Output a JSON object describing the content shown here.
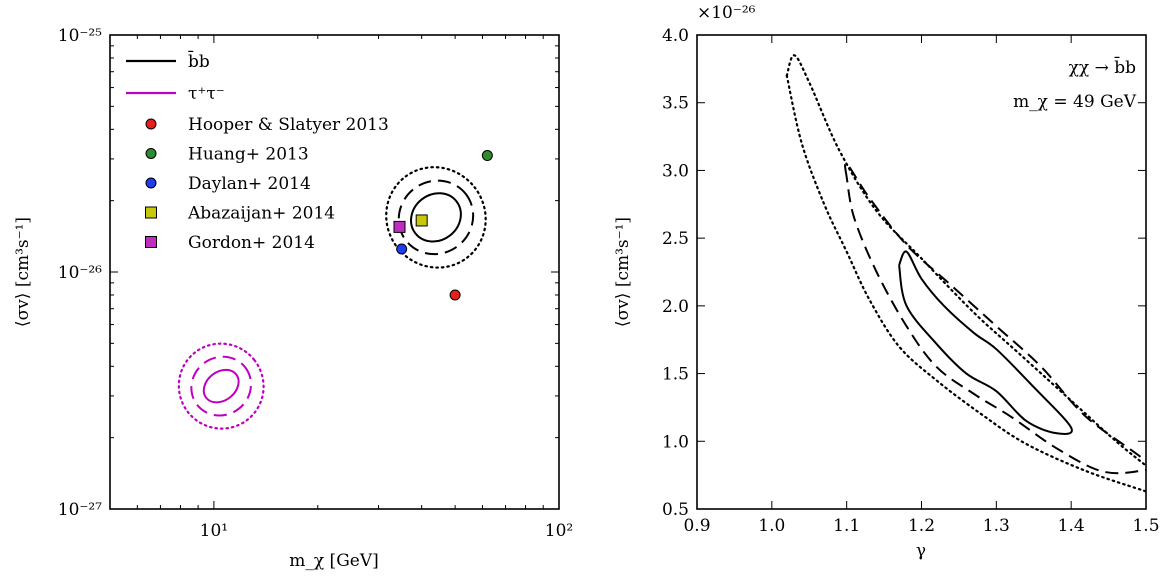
{
  "chart_data": [
    {
      "type": "scatter",
      "xlabel": "m_χ [GeV]",
      "ylabel": "⟨σv⟩ [cm³s⁻¹]",
      "xscale": "log",
      "yscale": "log",
      "xlim": [
        5,
        100
      ],
      "ylim": [
        1e-27,
        1e-25
      ],
      "x_ticks": [
        {
          "value": 10,
          "label": "10¹"
        },
        {
          "value": 100,
          "label": "10²"
        }
      ],
      "y_ticks": [
        {
          "value": 1e-27,
          "label": "10⁻²⁷"
        },
        {
          "value": 1e-26,
          "label": "10⁻²⁶"
        },
        {
          "value": 1e-25,
          "label": "10⁻²⁵"
        }
      ],
      "legend_placement": "top-left",
      "contour_series": [
        {
          "name": "b̄b",
          "color": "#000000",
          "center": [
            44,
            1.7e-26
          ],
          "contours": [
            {
              "style": "solid",
              "x_range": [
                36,
                55
              ],
              "y_range": [
                1.3e-26,
                2.3e-26
              ]
            },
            {
              "style": "dashed",
              "x_range": [
                34,
                63
              ],
              "y_range": [
                1.1e-26,
                2.7e-26
              ]
            },
            {
              "style": "dotted",
              "x_range": [
                32,
                71
              ],
              "y_range": [
                9e-27,
                3.2e-26
              ]
            }
          ]
        },
        {
          "name": "τ⁺τ⁻",
          "color": "#c000c0",
          "center": [
            10.5,
            3.3e-27
          ],
          "contours": [
            {
              "style": "solid",
              "x_range": [
                9.1,
                12.4
              ],
              "y_range": [
                2.8e-27,
                4e-27
              ]
            },
            {
              "style": "dashed",
              "x_range": [
                8.4,
                13.8
              ],
              "y_range": [
                2.3e-27,
                4.7e-27
              ]
            },
            {
              "style": "dotted",
              "x_range": [
                7.7,
                15.3
              ],
              "y_range": [
                1.9e-27,
                5.5e-27
              ]
            }
          ]
        }
      ],
      "points": [
        {
          "name": "Hooper & Slatyer 2013",
          "marker": "circle",
          "color": "#e8201b",
          "x": 50,
          "y": 8e-27
        },
        {
          "name": "Huang+ 2013",
          "marker": "circle",
          "color": "#2e8b2e",
          "x": 62,
          "y": 3.1e-26
        },
        {
          "name": "Daylan+ 2014",
          "marker": "circle",
          "color": "#1e3cf0",
          "x": 35,
          "y": 1.25e-26
        },
        {
          "name": "Abazaijan+ 2014",
          "marker": "square",
          "color": "#c8c80a",
          "x": 40,
          "y": 1.65e-26
        },
        {
          "name": "Gordon+ 2014",
          "marker": "square",
          "color": "#c02cc0",
          "x": 34.5,
          "y": 1.55e-26
        }
      ]
    },
    {
      "type": "line",
      "xlabel": "γ",
      "ylabel": "⟨σv⟩ [cm³s⁻¹]",
      "multiplier": "×10⁻²⁶",
      "xlim": [
        0.9,
        1.5
      ],
      "ylim": [
        0.5,
        4.0
      ],
      "x_ticks": [
        0.9,
        1.0,
        1.1,
        1.2,
        1.3,
        1.4,
        1.5
      ],
      "x_tick_labels": [
        "0.9",
        "1.0",
        "1.1",
        "1.2",
        "1.3",
        "1.4",
        "1.5"
      ],
      "y_ticks": [
        0.5,
        1.0,
        1.5,
        2.0,
        2.5,
        3.0,
        3.5,
        4.0
      ],
      "y_tick_labels": [
        "0.5",
        "1.0",
        "1.5",
        "2.0",
        "2.5",
        "3.0",
        "3.5",
        "4.0"
      ],
      "annotations": [
        "χχ → b̄b",
        "m_χ = 49 GeV"
      ],
      "contours": [
        {
          "style": "solid",
          "points": [
            [
              1.17,
              2.3
            ],
            [
              1.18,
              2.4
            ],
            [
              1.2,
              2.2
            ],
            [
              1.23,
              2.0
            ],
            [
              1.27,
              1.8
            ],
            [
              1.3,
              1.68
            ],
            [
              1.35,
              1.4
            ],
            [
              1.4,
              1.1
            ],
            [
              1.38,
              1.06
            ],
            [
              1.34,
              1.15
            ],
            [
              1.3,
              1.37
            ],
            [
              1.26,
              1.5
            ],
            [
              1.22,
              1.72
            ],
            [
              1.18,
              2.0
            ],
            [
              1.17,
              2.3
            ]
          ]
        },
        {
          "style": "dashed",
          "points": [
            [
              1.1,
              2.95
            ],
            [
              1.1,
              3.05
            ],
            [
              1.13,
              2.8
            ],
            [
              1.18,
              2.45
            ],
            [
              1.24,
              2.15
            ],
            [
              1.3,
              1.85
            ],
            [
              1.36,
              1.55
            ],
            [
              1.42,
              1.18
            ],
            [
              1.5,
              0.85
            ],
            [
              1.49,
              0.78
            ],
            [
              1.44,
              0.78
            ],
            [
              1.38,
              0.95
            ],
            [
              1.32,
              1.18
            ],
            [
              1.27,
              1.35
            ],
            [
              1.22,
              1.55
            ],
            [
              1.18,
              1.85
            ],
            [
              1.14,
              2.25
            ],
            [
              1.11,
              2.65
            ],
            [
              1.1,
              2.95
            ]
          ]
        },
        {
          "style": "dotted",
          "points": [
            [
              1.02,
              3.7
            ],
            [
              1.03,
              3.85
            ],
            [
              1.05,
              3.65
            ],
            [
              1.09,
              3.15
            ],
            [
              1.14,
              2.7
            ],
            [
              1.2,
              2.35
            ],
            [
              1.27,
              1.95
            ],
            [
              1.33,
              1.65
            ],
            [
              1.4,
              1.3
            ],
            [
              1.46,
              1.0
            ],
            [
              1.5,
              0.82
            ]
          ]
        },
        {
          "style": "dotted",
          "points": [
            [
              1.02,
              3.7
            ],
            [
              1.04,
              3.2
            ],
            [
              1.07,
              2.75
            ],
            [
              1.1,
              2.4
            ],
            [
              1.13,
              2.05
            ],
            [
              1.17,
              1.7
            ],
            [
              1.22,
              1.45
            ],
            [
              1.28,
              1.2
            ],
            [
              1.34,
              0.98
            ],
            [
              1.42,
              0.78
            ],
            [
              1.5,
              0.63
            ]
          ]
        }
      ]
    }
  ]
}
